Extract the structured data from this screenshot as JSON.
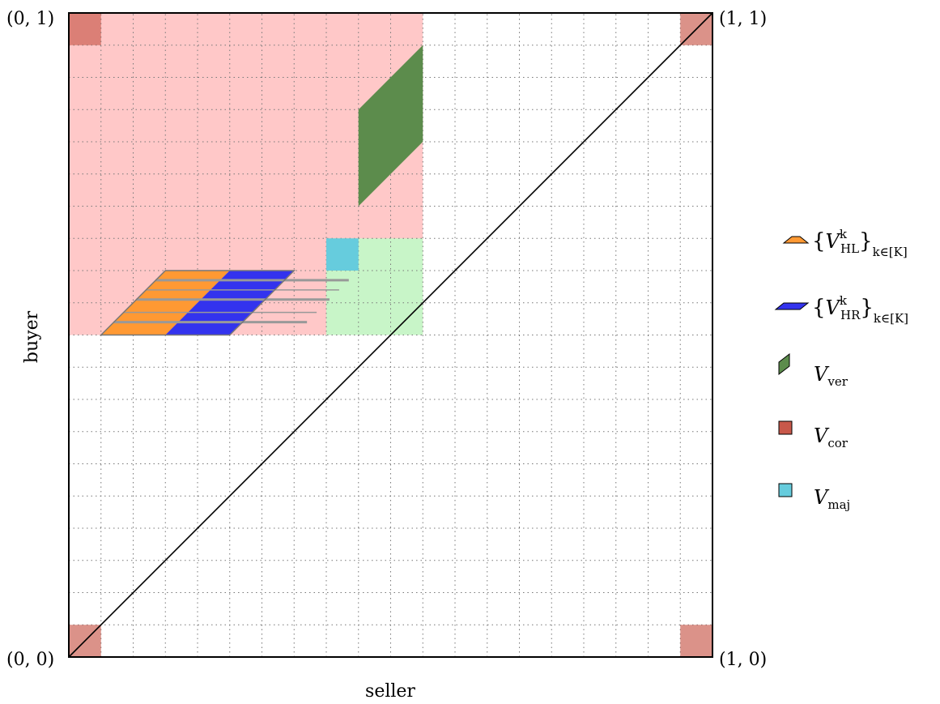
{
  "corners": {
    "top_left": "(0, 1)",
    "top_right": "(1, 1)",
    "bottom_left": "(0, 0)",
    "bottom_right": "(1, 0)"
  },
  "axes": {
    "xlabel": "seller",
    "ylabel": "buyer"
  },
  "grid": {
    "divisions": 20,
    "style": "dotted"
  },
  "colors": {
    "pink_region": "#ffc8c8",
    "light_green_region": "#c8f5c8",
    "orange": "#ff9933",
    "blue": "#3333ee",
    "dark_green": "#5c8c4c",
    "corner_red": "#c8584a",
    "cyan": "#66ccdd",
    "stripe": "#999999"
  },
  "legend": {
    "hl": {
      "prefix": "{",
      "script": "V",
      "sup": "k",
      "sub": "HL",
      "suffix": "}",
      "range": "k∈[K]"
    },
    "hr": {
      "prefix": "{",
      "script": "V",
      "sup": "k",
      "sub": "HR",
      "suffix": "}",
      "range": "k∈[K]"
    },
    "ver": {
      "script": "V",
      "sub": "ver"
    },
    "cor": {
      "script": "V",
      "sub": "cor"
    },
    "maj": {
      "script": "V",
      "sub": "maj"
    }
  }
}
